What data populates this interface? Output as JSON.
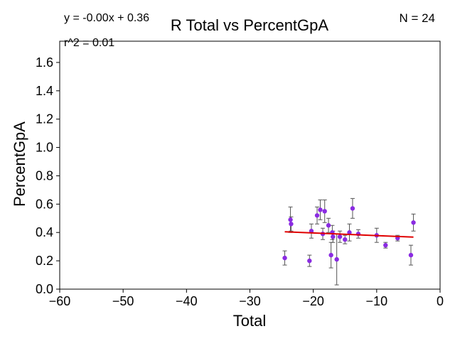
{
  "chart_data": {
    "type": "scatter",
    "title": "R Total vs PercentGpA",
    "xlabel": "Total",
    "ylabel": "PercentGpA",
    "xlim": [
      -60,
      0
    ],
    "ylim": [
      0,
      1.75
    ],
    "xticks": [
      -60,
      -50,
      -40,
      -30,
      -20,
      -10,
      0
    ],
    "yticks": [
      0.0,
      0.2,
      0.4,
      0.6,
      0.8,
      1.0,
      1.2,
      1.4,
      1.6
    ],
    "xtick_labels": [
      "−60",
      "−50",
      "−40",
      "−30",
      "−20",
      "−10",
      "0"
    ],
    "ytick_labels": [
      "0.0",
      "0.2",
      "0.4",
      "0.6",
      "0.8",
      "1.0",
      "1.2",
      "1.4",
      "1.6"
    ],
    "equation": "y = -0.00x + 0.36",
    "r_squared": "r^2 = 0.01",
    "n_label": "N = 24",
    "grid": false,
    "colors": {
      "points": "#8a2be2",
      "fit_line": "#e00000",
      "error_bars": "#555555"
    },
    "fit_line": {
      "x": [
        -24.5,
        -4.2
      ],
      "y": [
        0.405,
        0.367
      ]
    },
    "points": [
      {
        "x": -24.5,
        "y": 0.22,
        "err": 0.05
      },
      {
        "x": -23.6,
        "y": 0.49,
        "err": 0.09
      },
      {
        "x": -23.5,
        "y": 0.46,
        "err": 0.05
      },
      {
        "x": -20.6,
        "y": 0.2,
        "err": 0.04
      },
      {
        "x": -20.3,
        "y": 0.41,
        "err": 0.05
      },
      {
        "x": -19.4,
        "y": 0.52,
        "err": 0.06
      },
      {
        "x": -18.9,
        "y": 0.56,
        "err": 0.07
      },
      {
        "x": -18.5,
        "y": 0.39,
        "err": 0.04
      },
      {
        "x": -18.2,
        "y": 0.55,
        "err": 0.08
      },
      {
        "x": -17.6,
        "y": 0.45,
        "err": 0.05
      },
      {
        "x": -17.2,
        "y": 0.24,
        "err": 0.09
      },
      {
        "x": -17.0,
        "y": 0.4,
        "err": 0.05
      },
      {
        "x": -16.9,
        "y": 0.37,
        "err": 0.04
      },
      {
        "x": -16.3,
        "y": 0.21,
        "err": 0.18
      },
      {
        "x": -15.8,
        "y": 0.37,
        "err": 0.04
      },
      {
        "x": -15.0,
        "y": 0.35,
        "err": 0.03
      },
      {
        "x": -14.3,
        "y": 0.4,
        "err": 0.06
      },
      {
        "x": -13.8,
        "y": 0.57,
        "err": 0.07
      },
      {
        "x": -12.9,
        "y": 0.39,
        "err": 0.03
      },
      {
        "x": -10.0,
        "y": 0.38,
        "err": 0.05
      },
      {
        "x": -8.6,
        "y": 0.31,
        "err": 0.02
      },
      {
        "x": -6.7,
        "y": 0.36,
        "err": 0.02
      },
      {
        "x": -4.6,
        "y": 0.24,
        "err": 0.07
      },
      {
        "x": -4.2,
        "y": 0.47,
        "err": 0.06
      }
    ]
  }
}
